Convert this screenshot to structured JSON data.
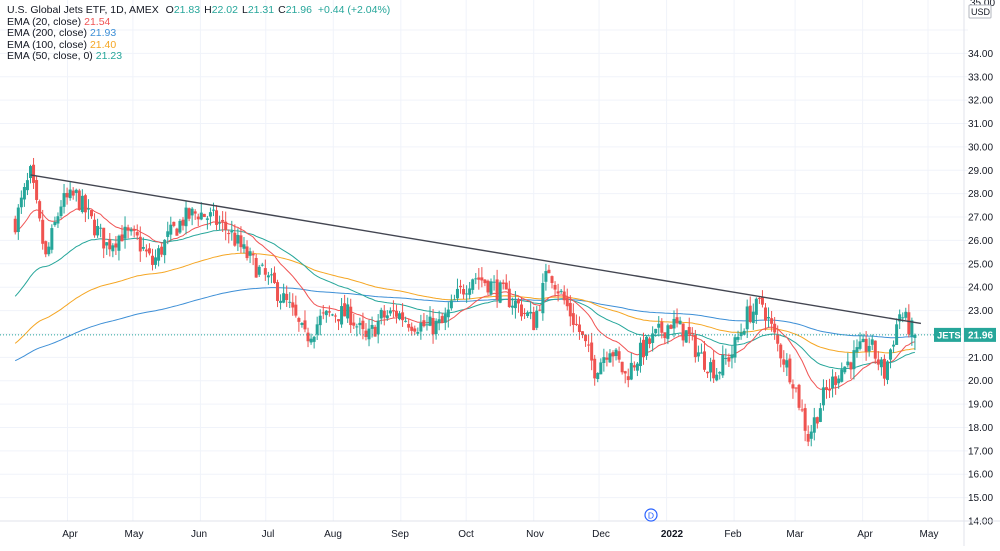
{
  "legend": {
    "title": "U.S. Global Jets ETF, 1D, AMEX",
    "ohlc": [
      {
        "k": "O",
        "v": "21.83"
      },
      {
        "k": "H",
        "v": "22.02"
      },
      {
        "k": "L",
        "v": "21.31"
      },
      {
        "k": "C",
        "v": "21.96"
      }
    ],
    "change": "+0.44 (+2.04%)",
    "indicators": [
      {
        "label": "EMA (20, close)",
        "value": "21.54",
        "color": "#f05454"
      },
      {
        "label": "EMA (200, close)",
        "value": "21.93",
        "color": "#3d8fd6"
      },
      {
        "label": "EMA (100, close)",
        "value": "21.40",
        "color": "#f5a623"
      },
      {
        "label": "EMA (50, close, 0)",
        "value": "21.23",
        "color": "#26a69a"
      }
    ]
  },
  "price_axis": {
    "currency": "USD",
    "ticks": [
      "35.00",
      "34.00",
      "33.00",
      "32.00",
      "31.00",
      "30.00",
      "29.00",
      "28.00",
      "27.00",
      "26.00",
      "25.00",
      "24.00",
      "23.00",
      "22.00",
      "21.00",
      "20.00",
      "19.00",
      "18.00",
      "17.00",
      "16.00",
      "15.00",
      "14.00"
    ]
  },
  "time_axis": {
    "labels": [
      "Apr",
      "May",
      "Jun",
      "Jul",
      "Aug",
      "Sep",
      "Oct",
      "Nov",
      "Dec",
      "2022",
      "Feb",
      "Mar",
      "Apr",
      "May"
    ]
  },
  "last_price": {
    "symbol": "JETS",
    "value": "21.96"
  },
  "event_marker": "D",
  "colors": {
    "up": "#26a69a",
    "down": "#ef5350",
    "trendline": "#434651",
    "grid": "#f0f3fa",
    "last_price_bg": "#26a69a"
  },
  "chart_data": {
    "type": "candlestick",
    "symbol": "JETS",
    "timeframe": "1D",
    "exchange": "AMEX",
    "ylim": [
      14,
      35
    ],
    "close_series": [
      {
        "date": "2021-03-08",
        "close": 26.8
      },
      {
        "date": "2021-03-15",
        "close": 28.8
      },
      {
        "date": "2021-03-22",
        "close": 25.2
      },
      {
        "date": "2021-03-29",
        "close": 27.6
      },
      {
        "date": "2021-04-05",
        "close": 27.9
      },
      {
        "date": "2021-04-12",
        "close": 26.8
      },
      {
        "date": "2021-04-19",
        "close": 25.8
      },
      {
        "date": "2021-04-26",
        "close": 26.3
      },
      {
        "date": "2021-05-03",
        "close": 26.0
      },
      {
        "date": "2021-05-10",
        "close": 25.0
      },
      {
        "date": "2021-05-17",
        "close": 26.1
      },
      {
        "date": "2021-05-24",
        "close": 26.9
      },
      {
        "date": "2021-05-31",
        "close": 27.2
      },
      {
        "date": "2021-06-07",
        "close": 26.9
      },
      {
        "date": "2021-06-14",
        "close": 26.4
      },
      {
        "date": "2021-06-21",
        "close": 25.5
      },
      {
        "date": "2021-06-28",
        "close": 24.7
      },
      {
        "date": "2021-07-05",
        "close": 24.0
      },
      {
        "date": "2021-07-12",
        "close": 23.1
      },
      {
        "date": "2021-07-19",
        "close": 21.8
      },
      {
        "date": "2021-07-26",
        "close": 22.6
      },
      {
        "date": "2021-08-02",
        "close": 22.9
      },
      {
        "date": "2021-08-09",
        "close": 22.8
      },
      {
        "date": "2021-08-16",
        "close": 21.7
      },
      {
        "date": "2021-08-23",
        "close": 22.7
      },
      {
        "date": "2021-08-30",
        "close": 22.9
      },
      {
        "date": "2021-09-06",
        "close": 22.5
      },
      {
        "date": "2021-09-13",
        "close": 22.3
      },
      {
        "date": "2021-09-20",
        "close": 22.4
      },
      {
        "date": "2021-09-27",
        "close": 23.6
      },
      {
        "date": "2021-10-04",
        "close": 24.5
      },
      {
        "date": "2021-10-11",
        "close": 24.2
      },
      {
        "date": "2021-10-18",
        "close": 23.7
      },
      {
        "date": "2021-10-25",
        "close": 23.2
      },
      {
        "date": "2021-11-01",
        "close": 22.5
      },
      {
        "date": "2021-11-08",
        "close": 24.8
      },
      {
        "date": "2021-11-15",
        "close": 23.4
      },
      {
        "date": "2021-11-22",
        "close": 22.1
      },
      {
        "date": "2021-11-29",
        "close": 20.5
      },
      {
        "date": "2021-12-06",
        "close": 21.5
      },
      {
        "date": "2021-12-13",
        "close": 20.2
      },
      {
        "date": "2021-12-20",
        "close": 21.2
      },
      {
        "date": "2021-12-27",
        "close": 21.9
      },
      {
        "date": "2022-01-03",
        "close": 22.5
      },
      {
        "date": "2022-01-10",
        "close": 22.0
      },
      {
        "date": "2022-01-17",
        "close": 21.0
      },
      {
        "date": "2022-01-24",
        "close": 20.4
      },
      {
        "date": "2022-01-31",
        "close": 21.2
      },
      {
        "date": "2022-02-07",
        "close": 22.8
      },
      {
        "date": "2022-02-14",
        "close": 23.3
      },
      {
        "date": "2022-02-21",
        "close": 21.5
      },
      {
        "date": "2022-02-28",
        "close": 20.1
      },
      {
        "date": "2022-03-07",
        "close": 17.6
      },
      {
        "date": "2022-03-14",
        "close": 19.3
      },
      {
        "date": "2022-03-21",
        "close": 20.4
      },
      {
        "date": "2022-03-28",
        "close": 21.0
      },
      {
        "date": "2022-04-04",
        "close": 21.6
      },
      {
        "date": "2022-04-11",
        "close": 20.3
      },
      {
        "date": "2022-04-18",
        "close": 22.9
      },
      {
        "date": "2022-04-25",
        "close": 21.96
      }
    ],
    "trendline": {
      "from": {
        "date": "2021-03-15",
        "price": 28.8
      },
      "to": {
        "date": "2022-04-25",
        "price": 22.45
      }
    }
  }
}
